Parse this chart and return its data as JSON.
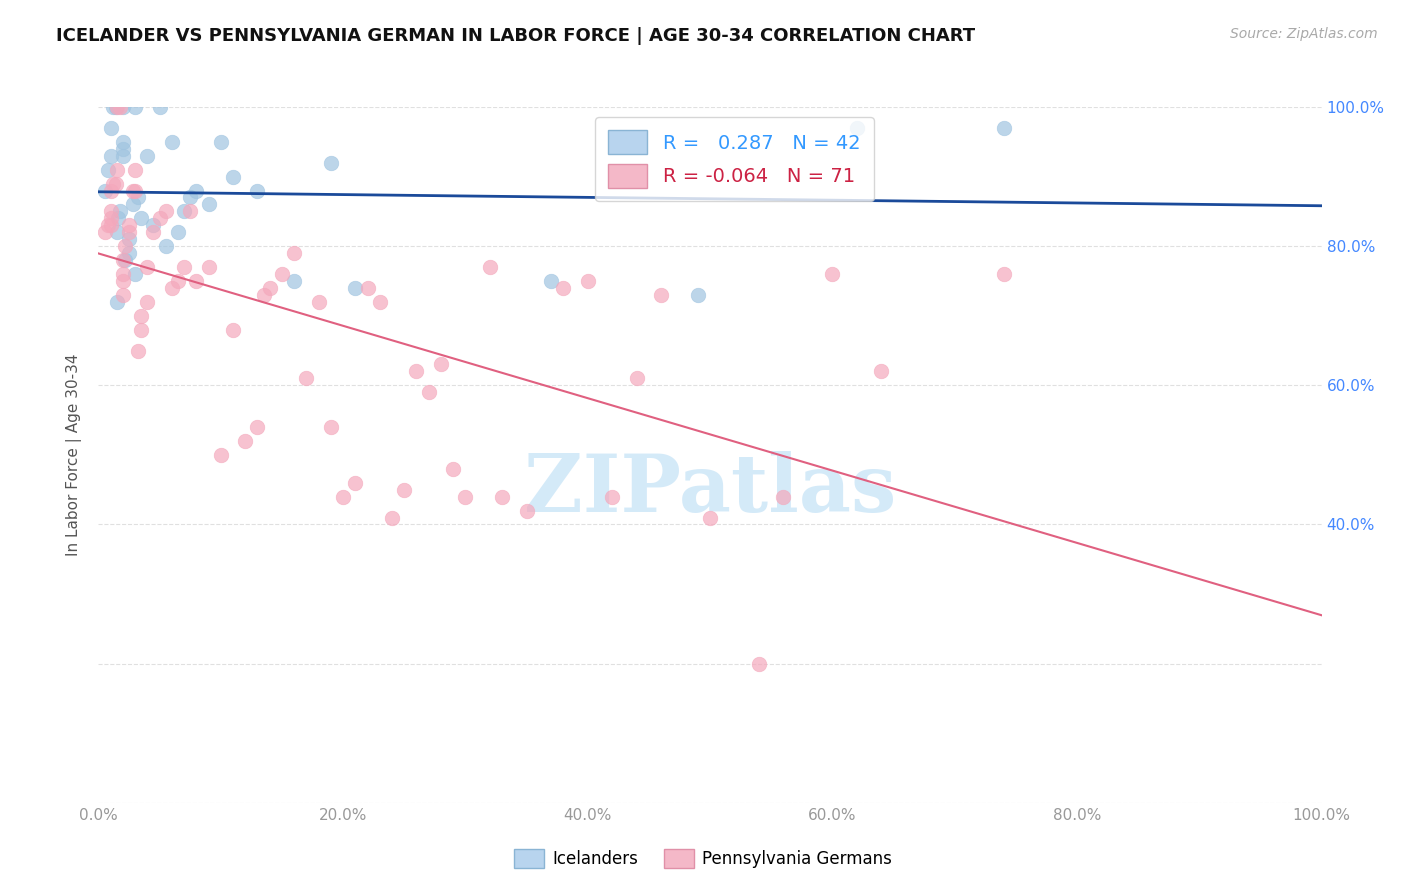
{
  "title": "ICELANDER VS PENNSYLVANIA GERMAN IN LABOR FORCE | AGE 30-34 CORRELATION CHART",
  "source": "Source: ZipAtlas.com",
  "ylabel": "In Labor Force | Age 30-34",
  "icelander_color": "#a0c4e0",
  "pennsylvania_color": "#f4a8bc",
  "trend_blue_color": "#1a4a9a",
  "trend_pink_color": "#e06080",
  "legend_blue_color": "#3399ff",
  "legend_pink_color": "#cc2244",
  "right_axis_color": "#4488ff",
  "grid_color": "#e0e0e0",
  "watermark_color": "#d0e8f8",
  "r_blue": 0.287,
  "n_blue": 42,
  "r_pink": -0.064,
  "n_pink": 71,
  "icelander_x": [
    0.5,
    0.8,
    1.0,
    1.0,
    1.2,
    1.4,
    1.5,
    1.5,
    1.6,
    1.8,
    2.0,
    2.0,
    2.0,
    2.0,
    2.2,
    2.5,
    2.5,
    2.8,
    3.0,
    3.0,
    3.2,
    3.5,
    4.0,
    4.5,
    5.0,
    5.5,
    6.0,
    6.5,
    7.0,
    7.5,
    8.0,
    9.0,
    10.0,
    11.0,
    13.0,
    16.0,
    19.0,
    21.0,
    37.0,
    49.0,
    62.0,
    74.0
  ],
  "icelander_y": [
    88,
    91,
    93,
    97,
    100,
    100,
    72,
    82,
    84,
    85,
    93,
    94,
    95,
    100,
    78,
    79,
    81,
    86,
    100,
    76,
    87,
    84,
    93,
    83,
    100,
    80,
    95,
    82,
    85,
    87,
    88,
    86,
    95,
    90,
    88,
    75,
    92,
    74,
    75,
    73,
    97,
    97
  ],
  "pennsylvania_x": [
    0.5,
    0.8,
    1.0,
    1.0,
    1.0,
    1.0,
    1.2,
    1.4,
    1.5,
    1.5,
    1.8,
    2.0,
    2.0,
    2.0,
    2.0,
    2.2,
    2.5,
    2.5,
    2.8,
    3.0,
    3.0,
    3.2,
    3.5,
    3.5,
    4.0,
    4.0,
    4.5,
    5.0,
    5.5,
    6.0,
    6.5,
    7.0,
    7.5,
    8.0,
    9.0,
    10.0,
    11.0,
    12.0,
    13.0,
    13.5,
    14.0,
    15.0,
    16.0,
    17.0,
    18.0,
    19.0,
    20.0,
    21.0,
    22.0,
    23.0,
    24.0,
    25.0,
    26.0,
    27.0,
    28.0,
    29.0,
    30.0,
    32.0,
    33.0,
    35.0,
    38.0,
    40.0,
    42.0,
    44.0,
    46.0,
    50.0,
    54.0,
    56.0,
    60.0,
    64.0,
    74.0
  ],
  "pennsylvania_y": [
    82,
    83,
    83,
    84,
    85,
    88,
    89,
    89,
    91,
    100,
    100,
    73,
    75,
    76,
    78,
    80,
    82,
    83,
    88,
    88,
    91,
    65,
    68,
    70,
    72,
    77,
    82,
    84,
    85,
    74,
    75,
    77,
    85,
    75,
    77,
    50,
    68,
    52,
    54,
    73,
    74,
    76,
    79,
    61,
    72,
    54,
    44,
    46,
    74,
    72,
    41,
    45,
    62,
    59,
    63,
    48,
    44,
    77,
    44,
    42,
    74,
    75,
    44,
    61,
    73,
    41,
    20,
    44,
    76,
    62,
    76
  ],
  "xlim": [
    0,
    100
  ],
  "ylim": [
    0,
    100
  ],
  "x_ticks": [
    0,
    20,
    40,
    60,
    80,
    100
  ],
  "y_ticks_right": [
    40,
    60,
    80,
    100
  ],
  "watermark": "ZIPatlas"
}
